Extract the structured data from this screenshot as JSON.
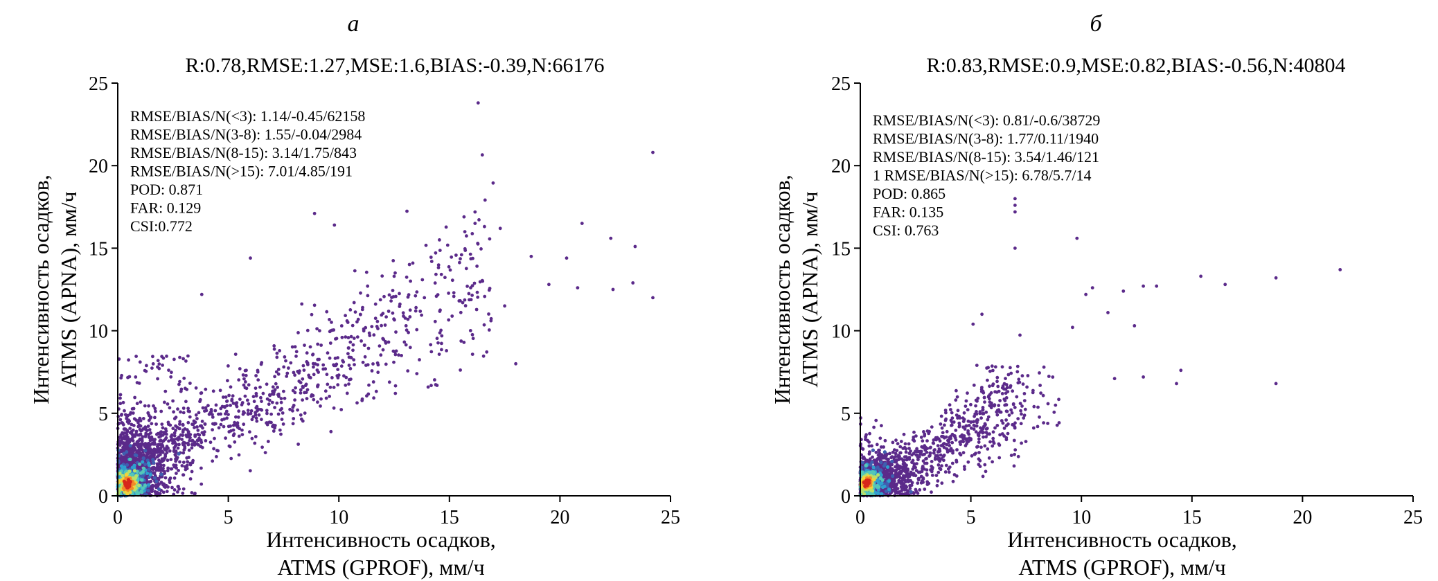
{
  "chart_data": [
    {
      "type": "scatter",
      "panel_label": "а",
      "title": "R:0.78,RMSE:1.27,MSE:1.6,BIAS:-0.39,N:66176",
      "xlabel_lines": [
        "Интенсивность осадков,",
        "ATMS (GPROF), мм/ч"
      ],
      "ylabel_lines": [
        "Интенсивность осадков,",
        "ATMS (APNA), мм/ч"
      ],
      "xlim": [
        0,
        25
      ],
      "ylim": [
        0,
        25
      ],
      "xticks": [
        0,
        5,
        10,
        15,
        20,
        25
      ],
      "yticks": [
        0,
        5,
        10,
        15,
        20,
        25
      ],
      "grid": false,
      "annotations": [
        "RMSE/BIAS/N(<3): 1.14/-0.45/62158",
        "RMSE/BIAS/N(3-8): 1.55/-0.04/2984",
        "RMSE/BIAS/N(8-15): 3.14/1.75/843",
        "RMSE/BIAS/N(>15): 7.01/4.85/191",
        "POD: 0.871",
        "FAR: 0.129",
        "CSI:0.772"
      ],
      "outliers": [
        [
          16.3,
          23.8
        ],
        [
          24.2,
          20.8
        ],
        [
          8.9,
          17.1
        ],
        [
          9.8,
          16.4
        ],
        [
          21.0,
          16.5
        ],
        [
          17.3,
          16.2
        ],
        [
          15.7,
          16.0
        ],
        [
          22.3,
          15.6
        ],
        [
          23.4,
          15.1
        ],
        [
          20.3,
          14.4
        ],
        [
          18.7,
          14.5
        ],
        [
          6.0,
          14.4
        ],
        [
          14.2,
          14.2
        ],
        [
          3.8,
          12.2
        ],
        [
          24.2,
          12.0
        ],
        [
          23.3,
          12.9
        ],
        [
          22.4,
          12.5
        ],
        [
          20.8,
          12.6
        ],
        [
          19.5,
          12.8
        ],
        [
          17.5,
          11.5
        ],
        [
          18.0,
          8.0
        ],
        [
          16.5,
          13.0
        ],
        [
          15.2,
          12.3
        ],
        [
          12.5,
          13.3
        ],
        [
          11.3,
          12.7
        ]
      ],
      "density_peak": [
        0.45,
        0.7
      ]
    },
    {
      "type": "scatter",
      "panel_label": "б",
      "title": "R:0.83,RMSE:0.9,MSE:0.82,BIAS:-0.56,N:40804",
      "xlabel_lines": [
        "Интенсивность осадков,",
        "ATMS (GPROF), мм/ч"
      ],
      "ylabel_lines": [
        "Интенсивность осадков,",
        "ATMS (APNA), мм/ч"
      ],
      "xlim": [
        0,
        25
      ],
      "ylim": [
        0,
        25
      ],
      "xticks": [
        0,
        5,
        10,
        15,
        20,
        25
      ],
      "yticks": [
        0,
        5,
        10,
        15,
        20,
        25
      ],
      "grid": false,
      "annotations": [
        "RMSE/BIAS/N(<3): 0.81/-0.6/38729",
        "RMSE/BIAS/N(3-8): 1.77/0.11/1940",
        "RMSE/BIAS/N(8-15): 3.54/1.46/121",
        "1 RMSE/BIAS/N(>15): 6.78/5.7/14",
        "POD: 0.865",
        "FAR: 0.135",
        "CSI: 0.763"
      ],
      "outliers": [
        [
          7.0,
          18.0
        ],
        [
          7.0,
          17.6
        ],
        [
          7.0,
          17.2
        ],
        [
          9.8,
          15.6
        ],
        [
          7.0,
          15.0
        ],
        [
          21.7,
          13.7
        ],
        [
          15.4,
          13.3
        ],
        [
          18.8,
          13.2
        ],
        [
          16.5,
          12.8
        ],
        [
          13.4,
          12.7
        ],
        [
          12.8,
          12.7
        ],
        [
          11.9,
          12.4
        ],
        [
          10.5,
          12.6
        ],
        [
          10.2,
          12.2
        ],
        [
          11.2,
          11.1
        ],
        [
          12.4,
          10.3
        ],
        [
          9.6,
          10.2
        ],
        [
          14.5,
          7.6
        ],
        [
          14.3,
          6.8
        ],
        [
          18.8,
          6.8
        ],
        [
          12.8,
          7.2
        ],
        [
          11.5,
          7.1
        ],
        [
          5.5,
          11.0
        ],
        [
          5.1,
          10.4
        ]
      ],
      "density_peak": [
        0.3,
        0.8
      ]
    }
  ],
  "colors": {
    "point": "#5b2a8a",
    "density": [
      "#5b2a8a",
      "#3f5fb0",
      "#2f9fcf",
      "#55c7b8",
      "#b8e06a",
      "#f3d23a",
      "#f08a2a",
      "#d7261b"
    ]
  }
}
